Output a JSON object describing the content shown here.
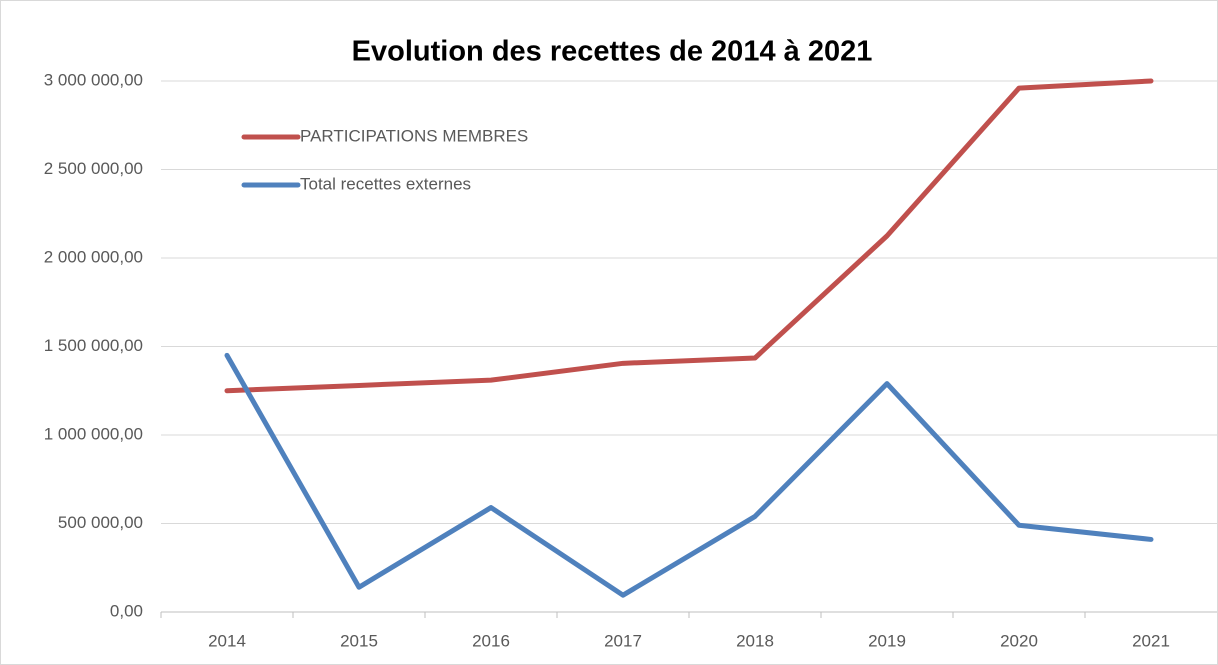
{
  "chart_data": {
    "type": "line",
    "title": "Evolution des recettes de 2014 à 2021",
    "categories": [
      "2014",
      "2015",
      "2016",
      "2017",
      "2018",
      "2019",
      "2020",
      "2021"
    ],
    "series": [
      {
        "name": "PARTICIPATIONS MEMBRES",
        "color": "#c0504d",
        "values": [
          1250000,
          1280000,
          1310000,
          1405000,
          1435000,
          2125000,
          2960000,
          3000000
        ]
      },
      {
        "name": "Total recettes externes",
        "color": "#4f81bd",
        "values": [
          1450000,
          140000,
          590000,
          95000,
          540000,
          1290000,
          490000,
          410000
        ]
      }
    ],
    "ylim": [
      0,
      3000000
    ],
    "yticks": [
      {
        "value": 0,
        "label": "0,00"
      },
      {
        "value": 500000,
        "label": "500 000,00"
      },
      {
        "value": 1000000,
        "label": "1 000 000,00"
      },
      {
        "value": 1500000,
        "label": "1 500 000,00"
      },
      {
        "value": 2000000,
        "label": "2 000 000,00"
      },
      {
        "value": 2500000,
        "label": "2 500 000,00"
      },
      {
        "value": 3000000,
        "label": "3 000 000,00"
      }
    ],
    "grid": true,
    "legend": "top-left"
  }
}
